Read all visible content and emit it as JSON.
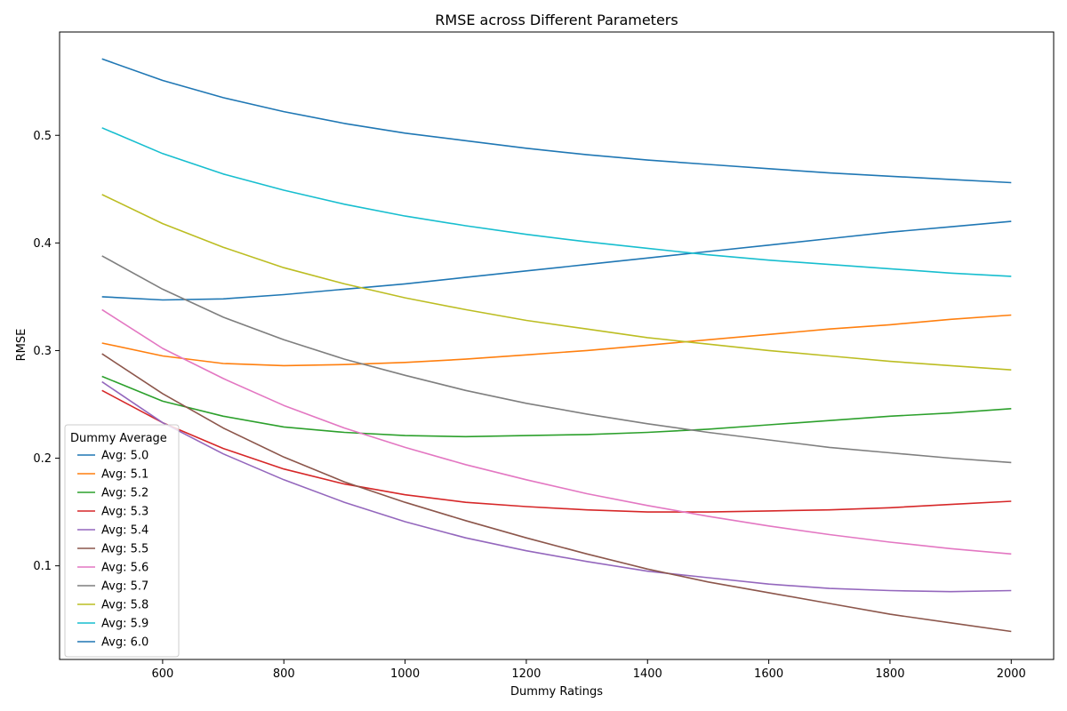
{
  "chart_data": {
    "type": "line",
    "title": "RMSE across Different Parameters",
    "xlabel": "Dummy Ratings",
    "ylabel": "RMSE",
    "xlim": [
      430,
      2070
    ],
    "ylim": [
      0.013,
      0.596
    ],
    "x_ticks": [
      600,
      800,
      1000,
      1200,
      1400,
      1600,
      1800,
      2000
    ],
    "y_ticks": [
      0.1,
      0.2,
      0.3,
      0.4,
      0.5
    ],
    "grid": false,
    "legend": {
      "title": "Dummy Average",
      "location": "lower left"
    },
    "x": [
      500,
      600,
      700,
      800,
      900,
      1000,
      1100,
      1200,
      1300,
      1400,
      1500,
      1600,
      1700,
      1800,
      1900,
      2000
    ],
    "series": [
      {
        "name": "Avg: 5.0",
        "color": "#1f77b4",
        "values": [
          0.35,
          0.347,
          0.348,
          0.352,
          0.357,
          0.362,
          0.368,
          0.374,
          0.38,
          0.386,
          0.392,
          0.398,
          0.404,
          0.41,
          0.415,
          0.42
        ]
      },
      {
        "name": "Avg: 5.1",
        "color": "#ff7f0e",
        "values": [
          0.307,
          0.295,
          0.288,
          0.286,
          0.287,
          0.289,
          0.292,
          0.296,
          0.3,
          0.305,
          0.31,
          0.315,
          0.32,
          0.324,
          0.329,
          0.333
        ]
      },
      {
        "name": "Avg: 5.2",
        "color": "#2ca02c",
        "values": [
          0.276,
          0.253,
          0.239,
          0.229,
          0.224,
          0.221,
          0.22,
          0.221,
          0.222,
          0.224,
          0.227,
          0.231,
          0.235,
          0.239,
          0.242,
          0.246
        ]
      },
      {
        "name": "Avg: 5.3",
        "color": "#d62728",
        "values": [
          0.263,
          0.233,
          0.209,
          0.19,
          0.176,
          0.166,
          0.159,
          0.155,
          0.152,
          0.15,
          0.15,
          0.151,
          0.152,
          0.154,
          0.157,
          0.16
        ]
      },
      {
        "name": "Avg: 5.4",
        "color": "#9467bd",
        "values": [
          0.271,
          0.233,
          0.204,
          0.18,
          0.159,
          0.141,
          0.126,
          0.114,
          0.104,
          0.095,
          0.089,
          0.083,
          0.079,
          0.077,
          0.076,
          0.077
        ]
      },
      {
        "name": "Avg: 5.5",
        "color": "#8c564b",
        "values": [
          0.297,
          0.26,
          0.228,
          0.201,
          0.178,
          0.159,
          0.142,
          0.126,
          0.111,
          0.097,
          0.085,
          0.075,
          0.065,
          0.055,
          0.047,
          0.039
        ]
      },
      {
        "name": "Avg: 5.6",
        "color": "#e377c2",
        "values": [
          0.338,
          0.302,
          0.274,
          0.249,
          0.228,
          0.21,
          0.194,
          0.18,
          0.167,
          0.156,
          0.146,
          0.137,
          0.129,
          0.122,
          0.116,
          0.111
        ]
      },
      {
        "name": "Avg: 5.7",
        "color": "#7f7f7f",
        "values": [
          0.388,
          0.357,
          0.331,
          0.31,
          0.292,
          0.277,
          0.263,
          0.251,
          0.241,
          0.232,
          0.224,
          0.217,
          0.21,
          0.205,
          0.2,
          0.196
        ]
      },
      {
        "name": "Avg: 5.8",
        "color": "#bcbd22",
        "values": [
          0.445,
          0.418,
          0.396,
          0.377,
          0.362,
          0.349,
          0.338,
          0.328,
          0.32,
          0.312,
          0.306,
          0.3,
          0.295,
          0.29,
          0.286,
          0.282
        ]
      },
      {
        "name": "Avg: 5.9",
        "color": "#17becf",
        "values": [
          0.507,
          0.483,
          0.464,
          0.449,
          0.436,
          0.425,
          0.416,
          0.408,
          0.401,
          0.395,
          0.389,
          0.384,
          0.38,
          0.376,
          0.372,
          0.369
        ]
      },
      {
        "name": "Avg: 6.0",
        "color": "#1f77b4",
        "values": [
          0.571,
          0.551,
          0.535,
          0.522,
          0.511,
          0.502,
          0.495,
          0.488,
          0.482,
          0.477,
          0.473,
          0.469,
          0.465,
          0.462,
          0.459,
          0.456
        ]
      }
    ]
  }
}
